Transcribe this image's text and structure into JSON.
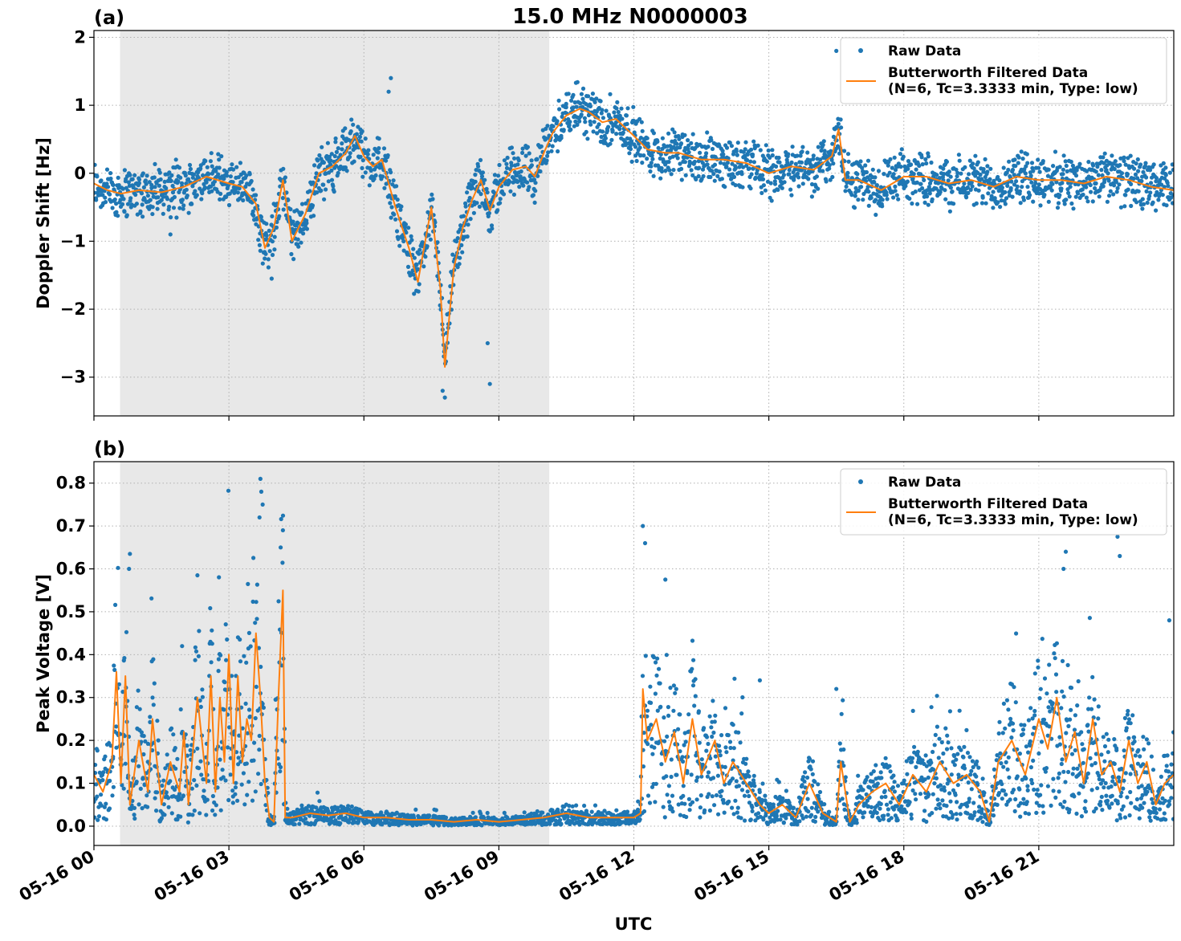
{
  "figure": {
    "title": "15.0 MHz N0000003",
    "xlabel": "UTC"
  },
  "colors": {
    "raw": "#1f77b4",
    "filtered": "#ff7f0e",
    "shade": "#e8e8e8"
  },
  "chart_data": [
    {
      "type": "scatter",
      "panel_label": "(a)",
      "ylabel": "Doppler Shift [Hz]",
      "x_unit": "hours since 05-16 00:00 UTC",
      "xlim": [
        0,
        24
      ],
      "ylim": [
        -3.57,
        2.1
      ],
      "yticks": [
        -3,
        -2,
        -1,
        0,
        1,
        2
      ],
      "ytick_labels": [
        "−3",
        "−2",
        "−1",
        "0",
        "1",
        "2"
      ],
      "xticks": [
        0,
        3,
        6,
        9,
        12,
        15,
        18,
        21
      ],
      "shaded_span": [
        0.58,
        10.12
      ],
      "legend": {
        "raw_label": "Raw Data",
        "filtered_label_1": "Butterworth Filtered Data",
        "filtered_label_2": "(N=6, Tc=3.3333 min, Type: low)",
        "position": "top-right"
      },
      "series": [
        {
          "name": "Butterworth Filtered Data",
          "x": [
            0,
            0.3,
            0.6,
            1.0,
            1.5,
            2.0,
            2.5,
            3.0,
            3.3,
            3.6,
            3.8,
            4.0,
            4.2,
            4.4,
            4.7,
            5.0,
            5.3,
            5.6,
            5.8,
            6.0,
            6.2,
            6.4,
            6.7,
            7.0,
            7.2,
            7.5,
            7.7,
            7.8,
            7.9,
            8.0,
            8.2,
            8.4,
            8.6,
            8.8,
            9.0,
            9.3,
            9.6,
            9.8,
            10.0,
            10.2,
            10.5,
            10.8,
            11.0,
            11.3,
            11.6,
            12.0,
            12.3,
            12.7,
            13.0,
            13.5,
            14.0,
            14.5,
            15.0,
            15.5,
            16.0,
            16.4,
            16.55,
            16.7,
            17.0,
            17.5,
            18.0,
            18.5,
            19.0,
            19.5,
            20.0,
            20.5,
            21.0,
            21.5,
            22.0,
            22.5,
            23.0,
            23.5,
            24.0
          ],
          "values": [
            -0.15,
            -0.25,
            -0.3,
            -0.25,
            -0.28,
            -0.2,
            -0.05,
            -0.15,
            -0.2,
            -0.45,
            -1.1,
            -0.8,
            -0.1,
            -1.0,
            -0.6,
            0.0,
            0.1,
            0.3,
            0.55,
            0.25,
            0.1,
            0.2,
            -0.5,
            -1.1,
            -1.6,
            -0.5,
            -1.7,
            -2.85,
            -2.1,
            -1.4,
            -0.8,
            -0.4,
            -0.1,
            -0.55,
            -0.2,
            0.05,
            0.1,
            -0.05,
            0.3,
            0.6,
            0.85,
            0.95,
            0.9,
            0.75,
            0.8,
            0.55,
            0.35,
            0.3,
            0.3,
            0.2,
            0.2,
            0.15,
            0.0,
            0.1,
            0.05,
            0.25,
            0.65,
            -0.1,
            -0.1,
            -0.25,
            -0.05,
            -0.05,
            -0.15,
            -0.1,
            -0.2,
            -0.05,
            -0.1,
            -0.1,
            -0.15,
            -0.05,
            -0.1,
            -0.2,
            -0.25
          ]
        },
        {
          "name": "Raw Data",
          "spread": 0.28,
          "outliers_x": [
            7.8,
            7.75,
            8.8,
            8.75,
            6.6,
            6.55,
            16.5,
            1.7,
            3.95,
            1.3
          ],
          "outliers_y": [
            -3.3,
            -3.2,
            -3.1,
            -2.5,
            1.4,
            1.2,
            1.8,
            -0.9,
            -1.55,
            -0.6
          ]
        }
      ]
    },
    {
      "type": "scatter",
      "panel_label": "(b)",
      "ylabel": "Peak Voltage [V]",
      "x_unit": "hours since 05-16 00:00 UTC",
      "xlim": [
        0,
        24
      ],
      "ylim": [
        -0.045,
        0.85
      ],
      "yticks": [
        0.0,
        0.1,
        0.2,
        0.3,
        0.4,
        0.5,
        0.6,
        0.7,
        0.8
      ],
      "ytick_labels": [
        "0.0",
        "0.1",
        "0.2",
        "0.3",
        "0.4",
        "0.5",
        "0.6",
        "0.7",
        "0.8"
      ],
      "xticks": [
        0,
        3,
        6,
        9,
        12,
        15,
        18,
        21
      ],
      "xtick_labels": [
        "05-16 00",
        "05-16 03",
        "05-16 06",
        "05-16 09",
        "05-16 12",
        "05-16 15",
        "05-16 18",
        "05-16 21"
      ],
      "shaded_span": [
        0.58,
        10.12
      ],
      "legend": {
        "raw_label": "Raw Data",
        "filtered_label_1": "Butterworth Filtered Data",
        "filtered_label_2": "(N=6, Tc=3.3333 min, Type: low)",
        "position": "top-right"
      },
      "series": [
        {
          "name": "Butterworth Filtered Data",
          "x": [
            0,
            0.2,
            0.4,
            0.5,
            0.6,
            0.7,
            0.8,
            1.0,
            1.2,
            1.3,
            1.5,
            1.7,
            1.9,
            2.0,
            2.1,
            2.3,
            2.5,
            2.6,
            2.7,
            2.8,
            2.9,
            3.0,
            3.1,
            3.2,
            3.3,
            3.4,
            3.5,
            3.6,
            3.7,
            3.8,
            3.9,
            4.0,
            4.1,
            4.2,
            4.25,
            4.4,
            4.8,
            5.2,
            5.6,
            6.0,
            6.5,
            7.0,
            7.5,
            8.0,
            8.5,
            9.0,
            9.5,
            10.0,
            10.5,
            11.0,
            11.5,
            12.0,
            12.15,
            12.2,
            12.3,
            12.5,
            12.7,
            12.9,
            13.1,
            13.3,
            13.5,
            13.8,
            14.0,
            14.2,
            14.5,
            14.8,
            15.0,
            15.3,
            15.6,
            15.9,
            16.2,
            16.5,
            16.6,
            16.8,
            17.0,
            17.3,
            17.6,
            17.9,
            18.2,
            18.5,
            18.8,
            19.1,
            19.4,
            19.7,
            19.9,
            20.1,
            20.4,
            20.7,
            21.0,
            21.2,
            21.4,
            21.6,
            21.8,
            22.0,
            22.2,
            22.4,
            22.6,
            22.8,
            23.0,
            23.2,
            23.4,
            23.6,
            23.8,
            24.0
          ],
          "values": [
            0.12,
            0.08,
            0.15,
            0.36,
            0.1,
            0.35,
            0.05,
            0.2,
            0.08,
            0.25,
            0.05,
            0.15,
            0.08,
            0.22,
            0.05,
            0.3,
            0.1,
            0.35,
            0.08,
            0.3,
            0.15,
            0.4,
            0.1,
            0.35,
            0.15,
            0.25,
            0.2,
            0.45,
            0.3,
            0.1,
            0.02,
            0.01,
            0.3,
            0.55,
            0.02,
            0.02,
            0.03,
            0.025,
            0.03,
            0.02,
            0.02,
            0.015,
            0.015,
            0.01,
            0.015,
            0.01,
            0.015,
            0.02,
            0.03,
            0.02,
            0.02,
            0.02,
            0.03,
            0.32,
            0.2,
            0.25,
            0.15,
            0.22,
            0.1,
            0.25,
            0.12,
            0.2,
            0.1,
            0.15,
            0.1,
            0.05,
            0.03,
            0.05,
            0.02,
            0.1,
            0.03,
            0.01,
            0.15,
            0.01,
            0.05,
            0.08,
            0.1,
            0.05,
            0.12,
            0.08,
            0.15,
            0.1,
            0.12,
            0.08,
            0.01,
            0.15,
            0.2,
            0.12,
            0.25,
            0.18,
            0.3,
            0.15,
            0.22,
            0.1,
            0.25,
            0.12,
            0.15,
            0.08,
            0.2,
            0.1,
            0.15,
            0.05,
            0.1,
            0.12
          ]
        },
        {
          "name": "Raw Data",
          "spread": 0.1,
          "outliers_x": [
            3.7,
            3.72,
            3.75,
            3.68,
            4.2,
            4.15,
            0.8,
            0.78,
            2.3,
            12.2,
            12.25,
            12.7,
            21.6,
            21.55,
            22.75,
            22.8,
            23.9,
            16.5,
            14.8
          ],
          "outliers_y": [
            0.81,
            0.78,
            0.75,
            0.72,
            0.69,
            0.65,
            0.635,
            0.6,
            0.585,
            0.7,
            0.66,
            0.575,
            0.64,
            0.6,
            0.675,
            0.63,
            0.48,
            0.32,
            0.34
          ]
        }
      ]
    }
  ]
}
